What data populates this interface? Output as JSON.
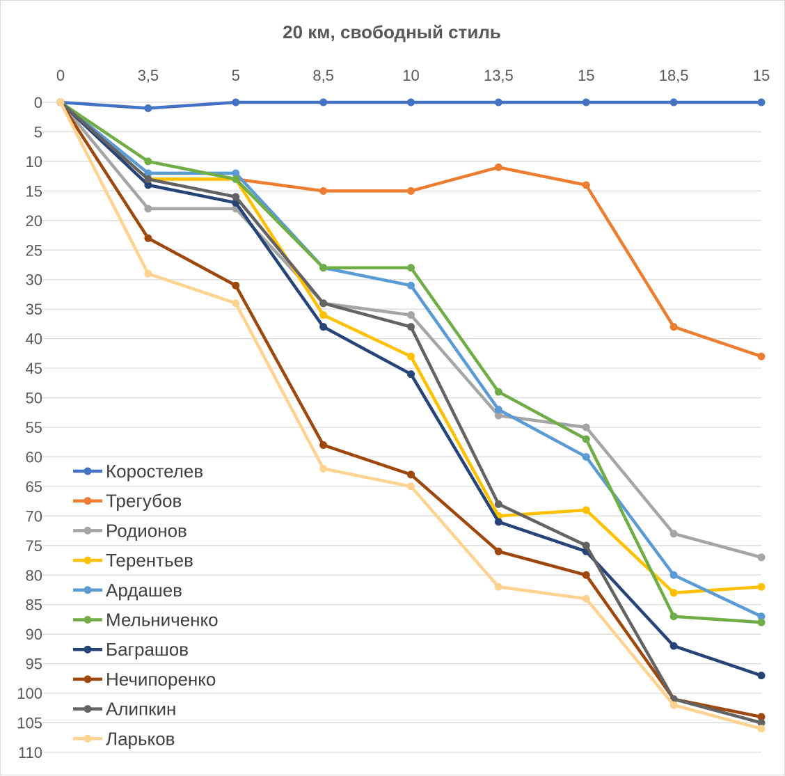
{
  "chart_data": {
    "type": "line",
    "title": "20 км, свободный стиль",
    "categories": [
      "0",
      "3,5",
      "5",
      "8,5",
      "10",
      "13,5",
      "15",
      "18,5",
      "15"
    ],
    "y_axis": {
      "min": 0,
      "max": 110,
      "step": 5,
      "reversed": true,
      "ticks": [
        "0",
        "5",
        "10",
        "15",
        "20",
        "25",
        "30",
        "35",
        "40",
        "45",
        "50",
        "55",
        "60",
        "65",
        "70",
        "75",
        "80",
        "85",
        "90",
        "95",
        "100",
        "105",
        "110"
      ]
    },
    "x_axis_position": "top",
    "grid": true,
    "legend_position": "bottom-left",
    "series": [
      {
        "name": "Коростелев",
        "color": "#4472C4",
        "values": [
          0,
          1,
          0,
          0,
          0,
          0,
          0,
          0,
          0
        ]
      },
      {
        "name": "Трегубов",
        "color": "#ED7D31",
        "values": [
          0,
          13,
          13,
          15,
          15,
          11,
          14,
          38,
          43
        ]
      },
      {
        "name": "Родионов",
        "color": "#A5A5A5",
        "values": [
          0,
          18,
          18,
          34,
          36,
          53,
          55,
          73,
          77
        ]
      },
      {
        "name": "Терентьев",
        "color": "#FFC000",
        "values": [
          0,
          13,
          13,
          36,
          43,
          70,
          69,
          83,
          82
        ]
      },
      {
        "name": "Ардашев",
        "color": "#5B9BD5",
        "values": [
          0,
          12,
          12,
          28,
          31,
          52,
          60,
          80,
          87
        ]
      },
      {
        "name": "Мельниченко",
        "color": "#70AD47",
        "values": [
          0,
          10,
          13,
          28,
          28,
          49,
          57,
          87,
          88
        ]
      },
      {
        "name": "Баграшов",
        "color": "#264478",
        "values": [
          0,
          14,
          17,
          38,
          46,
          71,
          76,
          92,
          97
        ]
      },
      {
        "name": "Нечипоренко",
        "color": "#9E480E",
        "values": [
          0,
          23,
          31,
          58,
          63,
          76,
          80,
          101,
          104
        ]
      },
      {
        "name": "Алипкин",
        "color": "#636363",
        "values": [
          0,
          13,
          16,
          34,
          38,
          68,
          75,
          101,
          105
        ]
      },
      {
        "name": "Ларьков",
        "color": "#FFD28F",
        "values": [
          0,
          29,
          34,
          62,
          65,
          82,
          84,
          102,
          106
        ]
      }
    ]
  }
}
